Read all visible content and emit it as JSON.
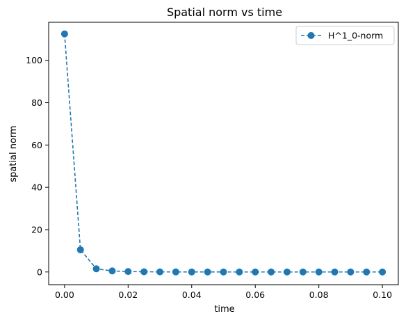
{
  "chart_data": {
    "type": "line",
    "title": "Spatial norm vs time",
    "xlabel": "time",
    "ylabel": "spatial norm",
    "xlim": [
      -0.005,
      0.105
    ],
    "ylim": [
      -6,
      118
    ],
    "xticks": [
      0.0,
      0.02,
      0.04,
      0.06,
      0.08,
      0.1
    ],
    "xtick_labels": [
      "0.00",
      "0.02",
      "0.04",
      "0.06",
      "0.08",
      "0.10"
    ],
    "yticks": [
      0,
      20,
      40,
      60,
      80,
      100
    ],
    "ytick_labels": [
      "0",
      "20",
      "40",
      "60",
      "80",
      "100"
    ],
    "grid": false,
    "legend_position": "top-right",
    "series": [
      {
        "name": "H^1_0-norm",
        "color": "#1f77b4",
        "line_style": "dashed",
        "marker": "circle",
        "x": [
          0.0,
          0.005,
          0.01,
          0.015,
          0.02,
          0.025,
          0.03,
          0.035,
          0.04,
          0.045,
          0.05,
          0.055,
          0.06,
          0.065,
          0.07,
          0.075,
          0.08,
          0.085,
          0.09,
          0.095,
          0.1
        ],
        "y": [
          112.5,
          10.5,
          1.5,
          0.5,
          0.2,
          0.1,
          0.05,
          0.03,
          0.02,
          0.01,
          0.01,
          0.0,
          0.0,
          0.0,
          0.0,
          0.0,
          0.0,
          0.0,
          0.0,
          0.0,
          0.0
        ]
      }
    ]
  }
}
